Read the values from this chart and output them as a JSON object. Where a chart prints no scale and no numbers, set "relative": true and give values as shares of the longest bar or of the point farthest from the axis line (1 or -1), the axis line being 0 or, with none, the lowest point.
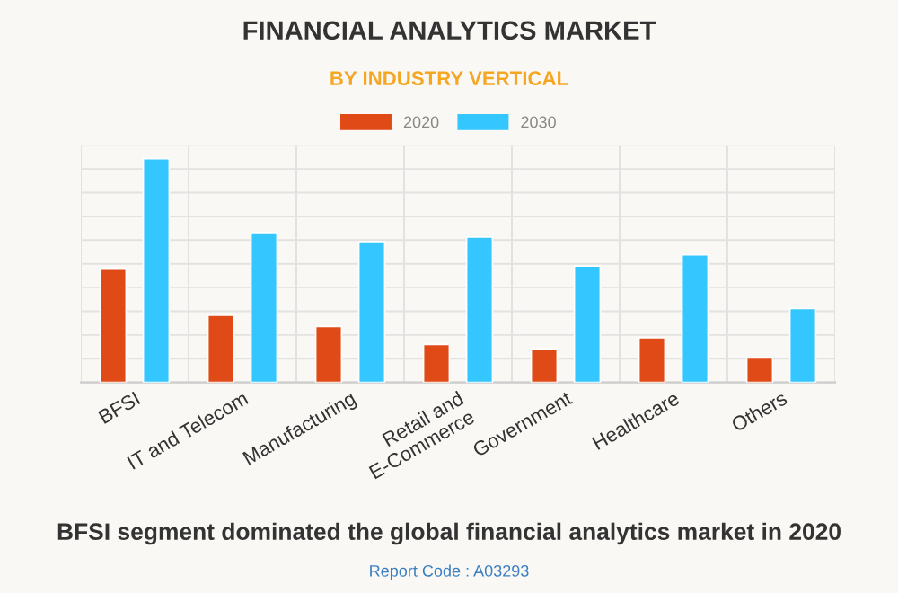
{
  "chart_data": {
    "type": "bar",
    "title": "FINANCIAL ANALYTICS MARKET",
    "subtitle": "BY INDUSTRY VERTICAL",
    "categories": [
      "BFSI",
      "IT and Telecom",
      "Manufacturing",
      "Retail and\nE-Commerce",
      "Government",
      "Healthcare",
      "Others"
    ],
    "series": [
      {
        "name": "2020",
        "color": "#e04a17",
        "values": [
          0.51,
          0.3,
          0.25,
          0.17,
          0.15,
          0.2,
          0.11
        ]
      },
      {
        "name": "2030",
        "color": "#33c6ff",
        "values": [
          1.0,
          0.67,
          0.63,
          0.65,
          0.52,
          0.57,
          0.33
        ]
      }
    ],
    "relative": true,
    "grid": true,
    "legend": "top",
    "annotations": [
      "BFSI segment dominated the global financial analytics market in 2020",
      "Report Code : A03293"
    ]
  }
}
